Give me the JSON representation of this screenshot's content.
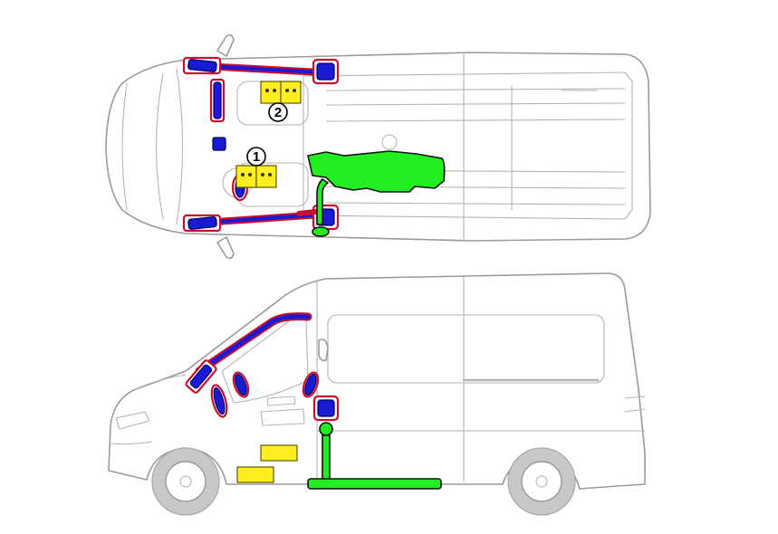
{
  "callouts": [
    {
      "id": "battery-1",
      "label": "1"
    },
    {
      "id": "battery-2",
      "label": "2"
    }
  ],
  "legend_colors": {
    "airbag": "#1a1ad4",
    "airbag_cover_frame": "#c8102e",
    "fuel_system": "#22ee22",
    "battery": "#ffee22"
  },
  "views": [
    "top-view",
    "side-view"
  ]
}
